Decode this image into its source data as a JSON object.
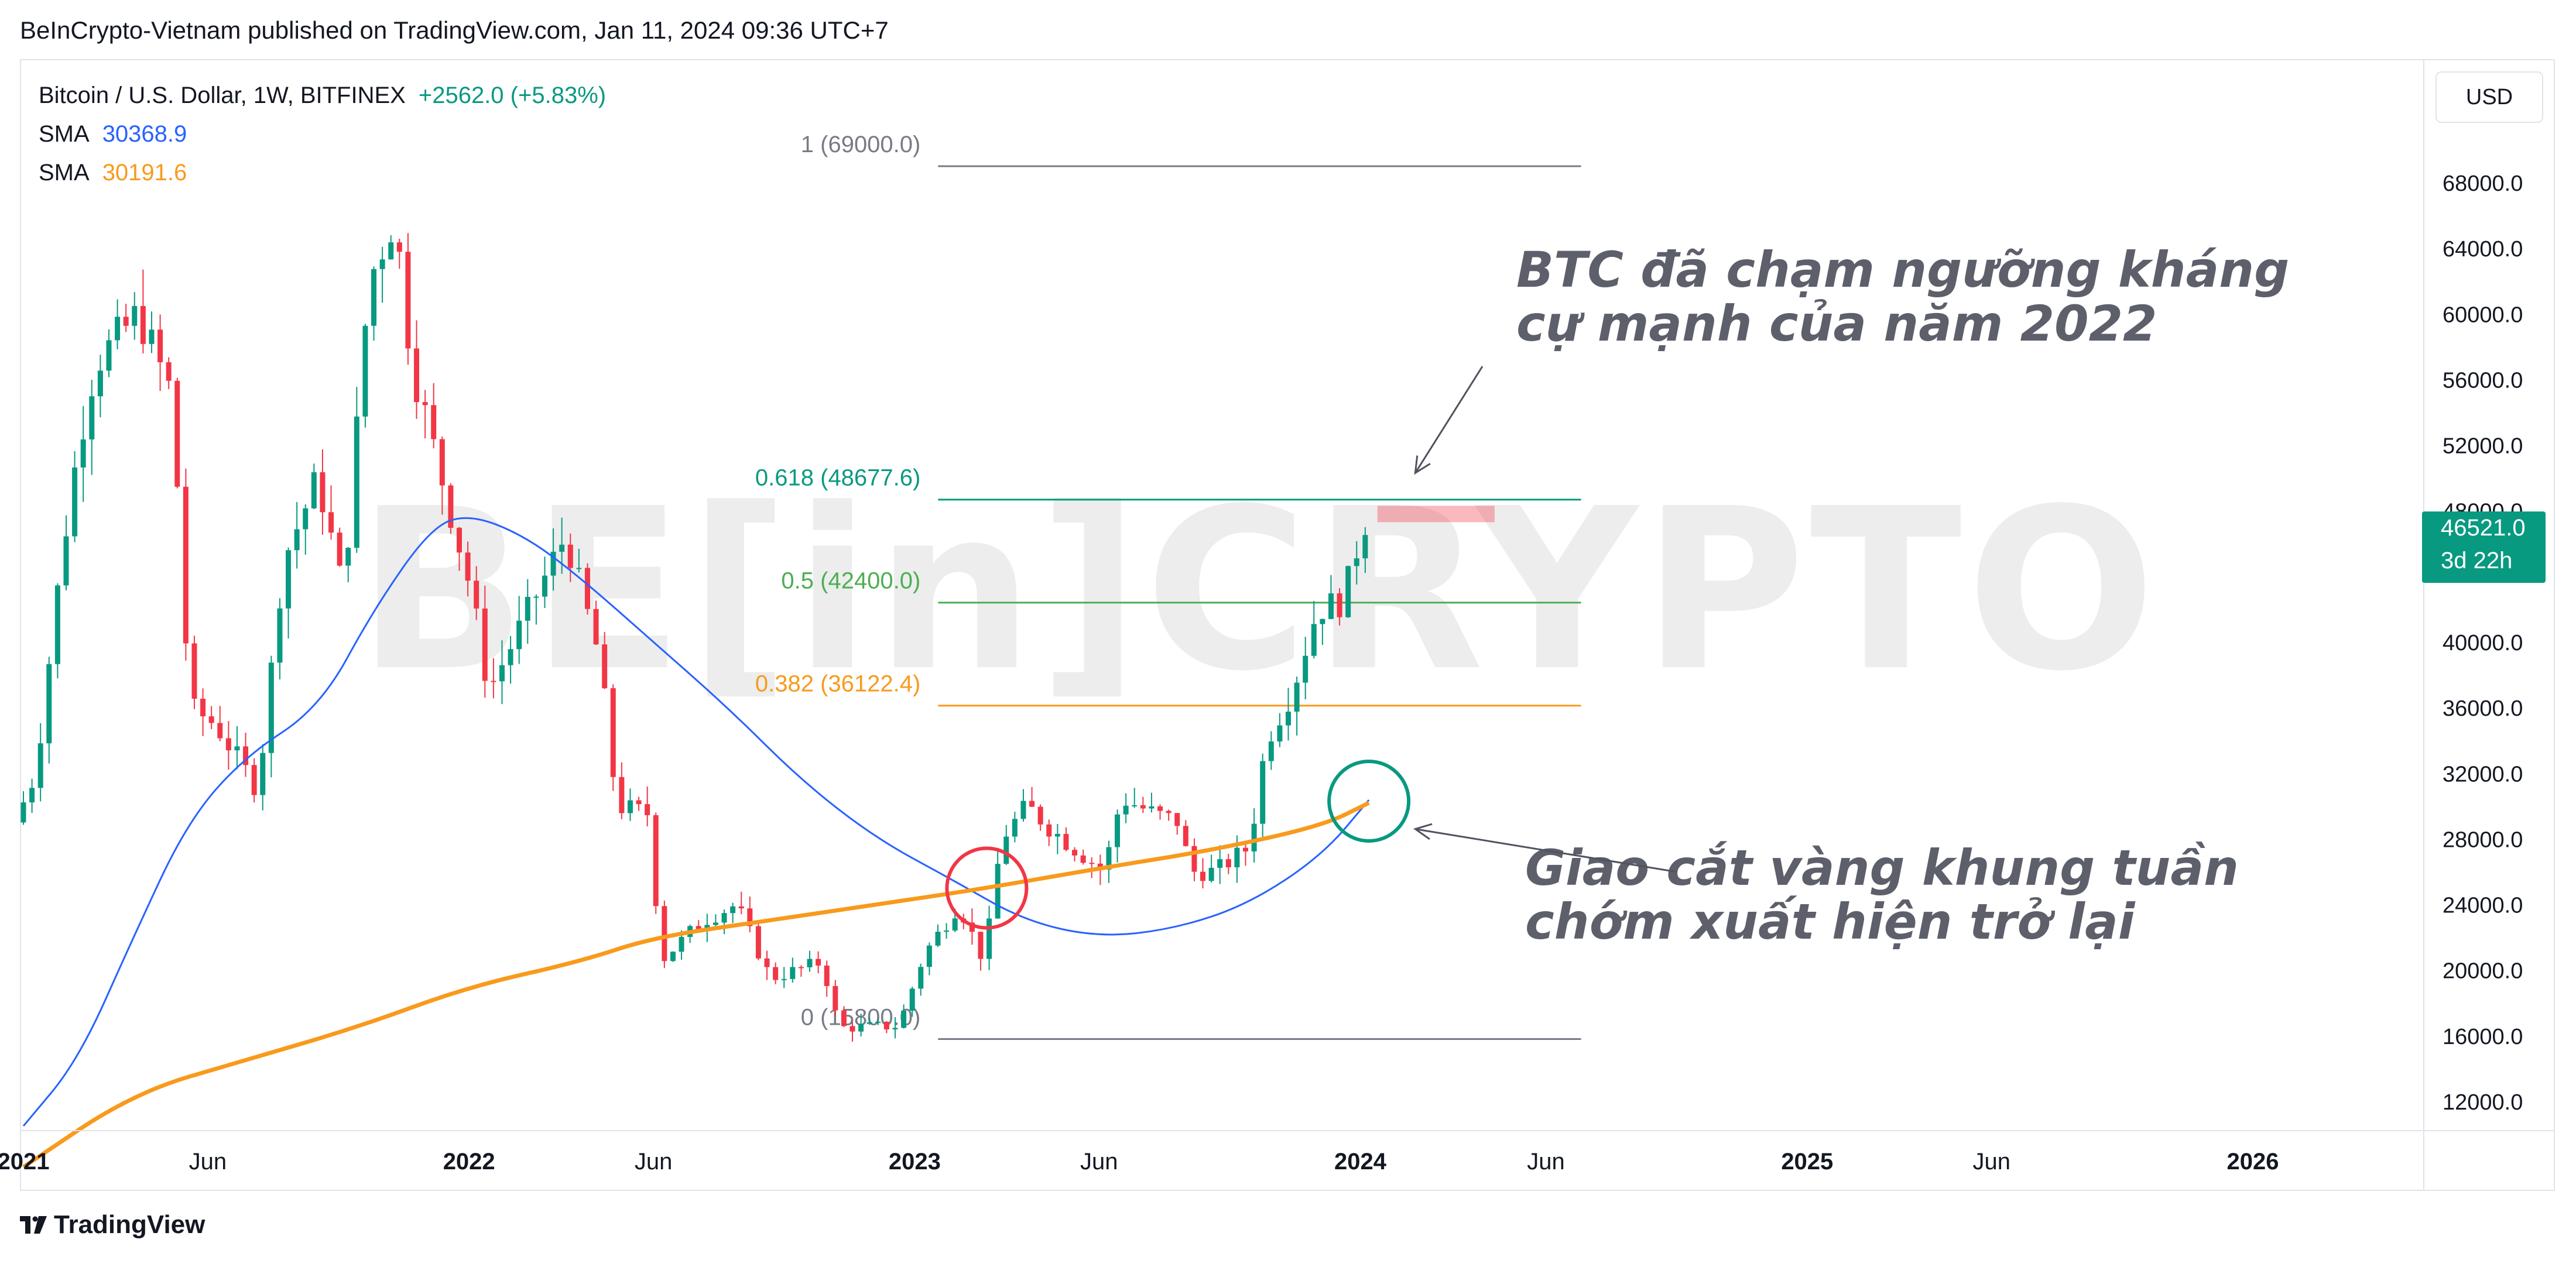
{
  "header": {
    "publish_text": "BeInCrypto-Vietnam published on TradingView.com, Jan 11, 2024 09:36 UTC+7"
  },
  "legend": {
    "symbol": "Bitcoin / U.S. Dollar, 1W, BITFINEX",
    "change": "+2562.0 (+5.83%)",
    "sma1_label": "SMA",
    "sma1_value": "30368.9",
    "sma2_label": "SMA",
    "sma2_value": "30191.6"
  },
  "toolbar": {
    "currency": "USD"
  },
  "price_tag": {
    "price": "46521.0",
    "countdown": "3d 22h"
  },
  "watermark": "BE[in]CRYPTO",
  "footer": {
    "brand": "TradingView"
  },
  "colors": {
    "up": "#089981",
    "down": "#f23645",
    "sma_fast": "#2962ff",
    "sma_slow": "#f89a1c",
    "fib_0618": "#089981",
    "fib_05": "#4caf50",
    "fib_0382": "#f89a1c",
    "fib_neutral": "#787b86",
    "circle_red": "#f23645",
    "circle_green": "#089981",
    "annotation": "#5d606b"
  },
  "chart_data": {
    "type": "candlestick",
    "title": "Bitcoin / U.S. Dollar, 1W, BITFINEX",
    "ylim": [
      10000,
      72000
    ],
    "y_ticks": [
      12000,
      16000,
      20000,
      24000,
      28000,
      32000,
      36000,
      40000,
      48000,
      52000,
      56000,
      60000,
      64000,
      68000
    ],
    "y_tick_labels": [
      "12000.0",
      "16000.0",
      "20000.0",
      "24000.0",
      "28000.0",
      "32000.0",
      "36000.0",
      "40000.0",
      "48000.0",
      "52000.0",
      "56000.0",
      "60000.0",
      "64000.0",
      "68000.0"
    ],
    "x_ticks": [
      {
        "label": "2021",
        "date": "2021-01-01",
        "bold": true
      },
      {
        "label": "Jun",
        "date": "2021-06-01",
        "bold": false
      },
      {
        "label": "2022",
        "date": "2022-01-01",
        "bold": true
      },
      {
        "label": "Jun",
        "date": "2022-06-01",
        "bold": false
      },
      {
        "label": "2023",
        "date": "2023-01-01",
        "bold": true
      },
      {
        "label": "Jun",
        "date": "2023-06-01",
        "bold": false
      },
      {
        "label": "2024",
        "date": "2024-01-01",
        "bold": true
      },
      {
        "label": "Jun",
        "date": "2024-06-01",
        "bold": false
      },
      {
        "label": "2025",
        "date": "2025-01-01",
        "bold": true
      },
      {
        "label": "Jun",
        "date": "2025-06-01",
        "bold": false
      },
      {
        "label": "2026",
        "date": "2026-01-01",
        "bold": true
      }
    ],
    "price_path": [
      [
        "2021-01-01",
        29000
      ],
      [
        "2021-01-18",
        32000
      ],
      [
        "2021-02-08",
        45000
      ],
      [
        "2021-02-22",
        52000
      ],
      [
        "2021-03-08",
        57000
      ],
      [
        "2021-04-12",
        60000
      ],
      [
        "2021-05-10",
        55000
      ],
      [
        "2021-05-24",
        36000
      ],
      [
        "2021-06-14",
        35000
      ],
      [
        "2021-07-19",
        31000
      ],
      [
        "2021-08-09",
        45000
      ],
      [
        "2021-09-06",
        50000
      ],
      [
        "2021-09-27",
        43000
      ],
      [
        "2021-10-18",
        62000
      ],
      [
        "2021-11-08",
        66000
      ],
      [
        "2021-11-22",
        57000
      ],
      [
        "2021-12-20",
        49000
      ],
      [
        "2022-01-10",
        43000
      ],
      [
        "2022-01-24",
        37000
      ],
      [
        "2022-03-28",
        46500
      ],
      [
        "2022-04-25",
        39000
      ],
      [
        "2022-05-09",
        30000
      ],
      [
        "2022-06-06",
        29500
      ],
      [
        "2022-06-13",
        20500
      ],
      [
        "2022-07-18",
        23000
      ],
      [
        "2022-08-15",
        24000
      ],
      [
        "2022-09-12",
        19500
      ],
      [
        "2022-10-24",
        20500
      ],
      [
        "2022-11-07",
        16500
      ],
      [
        "2022-12-26",
        16600
      ],
      [
        "2023-01-16",
        21000
      ],
      [
        "2023-02-13",
        24000
      ],
      [
        "2023-03-06",
        20500
      ],
      [
        "2023-03-20",
        28000
      ],
      [
        "2023-04-10",
        30000
      ],
      [
        "2023-05-01",
        28500
      ],
      [
        "2023-06-12",
        26000
      ],
      [
        "2023-06-26",
        30500
      ],
      [
        "2023-07-24",
        29500
      ],
      [
        "2023-08-14",
        29000
      ],
      [
        "2023-08-21",
        26000
      ],
      [
        "2023-09-11",
        26000
      ],
      [
        "2023-10-09",
        27500
      ],
      [
        "2023-10-23",
        34000
      ],
      [
        "2023-11-13",
        37000
      ],
      [
        "2023-12-04",
        42000
      ],
      [
        "2023-12-25",
        42500
      ],
      [
        "2024-01-08",
        46521
      ]
    ],
    "series": [
      {
        "name": "SMA",
        "last_value": 30368.9,
        "color": "#2962ff",
        "points": [
          [
            "2021-01-01",
            10500
          ],
          [
            "2021-02-15",
            14500
          ],
          [
            "2021-04-01",
            22000
          ],
          [
            "2021-05-15",
            29000
          ],
          [
            "2021-07-01",
            33000
          ],
          [
            "2021-09-01",
            36000
          ],
          [
            "2021-10-15",
            42000
          ],
          [
            "2021-12-01",
            47000
          ],
          [
            "2022-01-01",
            47800
          ],
          [
            "2022-02-15",
            46500
          ],
          [
            "2022-04-01",
            44000
          ],
          [
            "2022-06-01",
            40000
          ],
          [
            "2022-08-01",
            36000
          ],
          [
            "2022-10-01",
            31500
          ],
          [
            "2022-12-01",
            28000
          ],
          [
            "2023-02-01",
            25500
          ],
          [
            "2023-04-01",
            23000
          ],
          [
            "2023-06-01",
            22000
          ],
          [
            "2023-08-01",
            22500
          ],
          [
            "2023-10-01",
            24000
          ],
          [
            "2023-12-01",
            27000
          ],
          [
            "2024-01-08",
            30368.9
          ]
        ]
      },
      {
        "name": "SMA",
        "last_value": 30191.6,
        "color": "#f89a1c",
        "points": [
          [
            "2021-01-01",
            8000
          ],
          [
            "2021-04-01",
            12500
          ],
          [
            "2021-07-01",
            14500
          ],
          [
            "2021-10-01",
            16500
          ],
          [
            "2022-01-01",
            19000
          ],
          [
            "2022-04-01",
            20500
          ],
          [
            "2022-06-01",
            22000
          ],
          [
            "2022-09-01",
            23000
          ],
          [
            "2022-12-01",
            24000
          ],
          [
            "2023-03-01",
            25000
          ],
          [
            "2023-06-01",
            26200
          ],
          [
            "2023-09-01",
            27300
          ],
          [
            "2023-12-01",
            28800
          ],
          [
            "2024-01-08",
            30191.6
          ]
        ]
      }
    ],
    "fibonacci": {
      "start_date": "2023-01-01",
      "end_date": "2024-06-01",
      "levels": [
        {
          "label": "1 (69000.0)",
          "value": 69000,
          "color": "#787b86"
        },
        {
          "label": "0.618 (48677.6)",
          "value": 48677.6,
          "color": "#089981"
        },
        {
          "label": "0.5 (42400.0)",
          "value": 42400,
          "color": "#4caf50"
        },
        {
          "label": "0.382 (36122.4)",
          "value": 36122.4,
          "color": "#f89a1c"
        },
        {
          "label": "0 (15800.0)",
          "value": 15800,
          "color": "#787b86"
        }
      ]
    },
    "resistance_zone": {
      "start_date": "2024-01-15",
      "end_date": "2024-04-20",
      "low": 47300,
      "high": 48300
    },
    "highlight_circles": [
      {
        "date": "2023-03-01",
        "value": 25000,
        "color": "#f23645"
      },
      {
        "date": "2024-01-08",
        "value": 30300,
        "color": "#089981"
      }
    ],
    "annotations": [
      {
        "lines": [
          "BTC đã chạm ngưỡng kháng",
          "cự mạnh của năm 2022"
        ],
        "arrow_from": [
          "2024-04-10",
          56800
        ],
        "arrow_to": [
          "2024-02-15",
          50300
        ]
      },
      {
        "lines": [
          "Giao cắt vàng khung tuần",
          "chớm xuất hiện trở lại"
        ],
        "arrow_from": [
          "2024-09-15",
          26000
        ],
        "arrow_to": [
          "2024-02-15",
          28600
        ]
      }
    ]
  }
}
